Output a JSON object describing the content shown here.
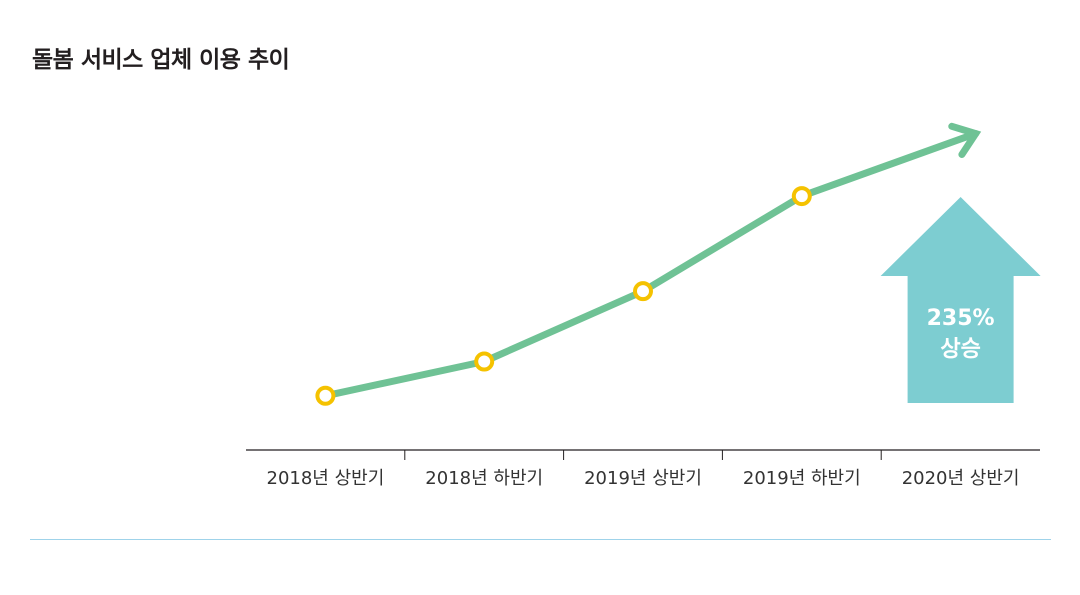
{
  "title": "돌봄 서비스 업체 이용 추이",
  "chart_data": {
    "type": "line",
    "title": "돌봄 서비스 업체 이용 추이",
    "categories": [
      "2018년 상반기",
      "2018년 하반기",
      "2019년 상반기",
      "2019년 하반기",
      "2020년 상반기"
    ],
    "series": [
      {
        "values": [
          100,
          118,
          155,
          205,
          235
        ]
      }
    ],
    "ylim": [
      82,
      245
    ],
    "trend_arrow": true,
    "annotation": {
      "line1": "235%",
      "line2": "상승"
    },
    "grid": false,
    "legend": "none",
    "colors": {
      "line": "#6fc295",
      "marker_stroke": "#f5c200",
      "marker_fill": "#ffffff",
      "badge": "#7dcdd1",
      "axis": "#231f20",
      "footer_rule": "#9fd3ea"
    }
  }
}
